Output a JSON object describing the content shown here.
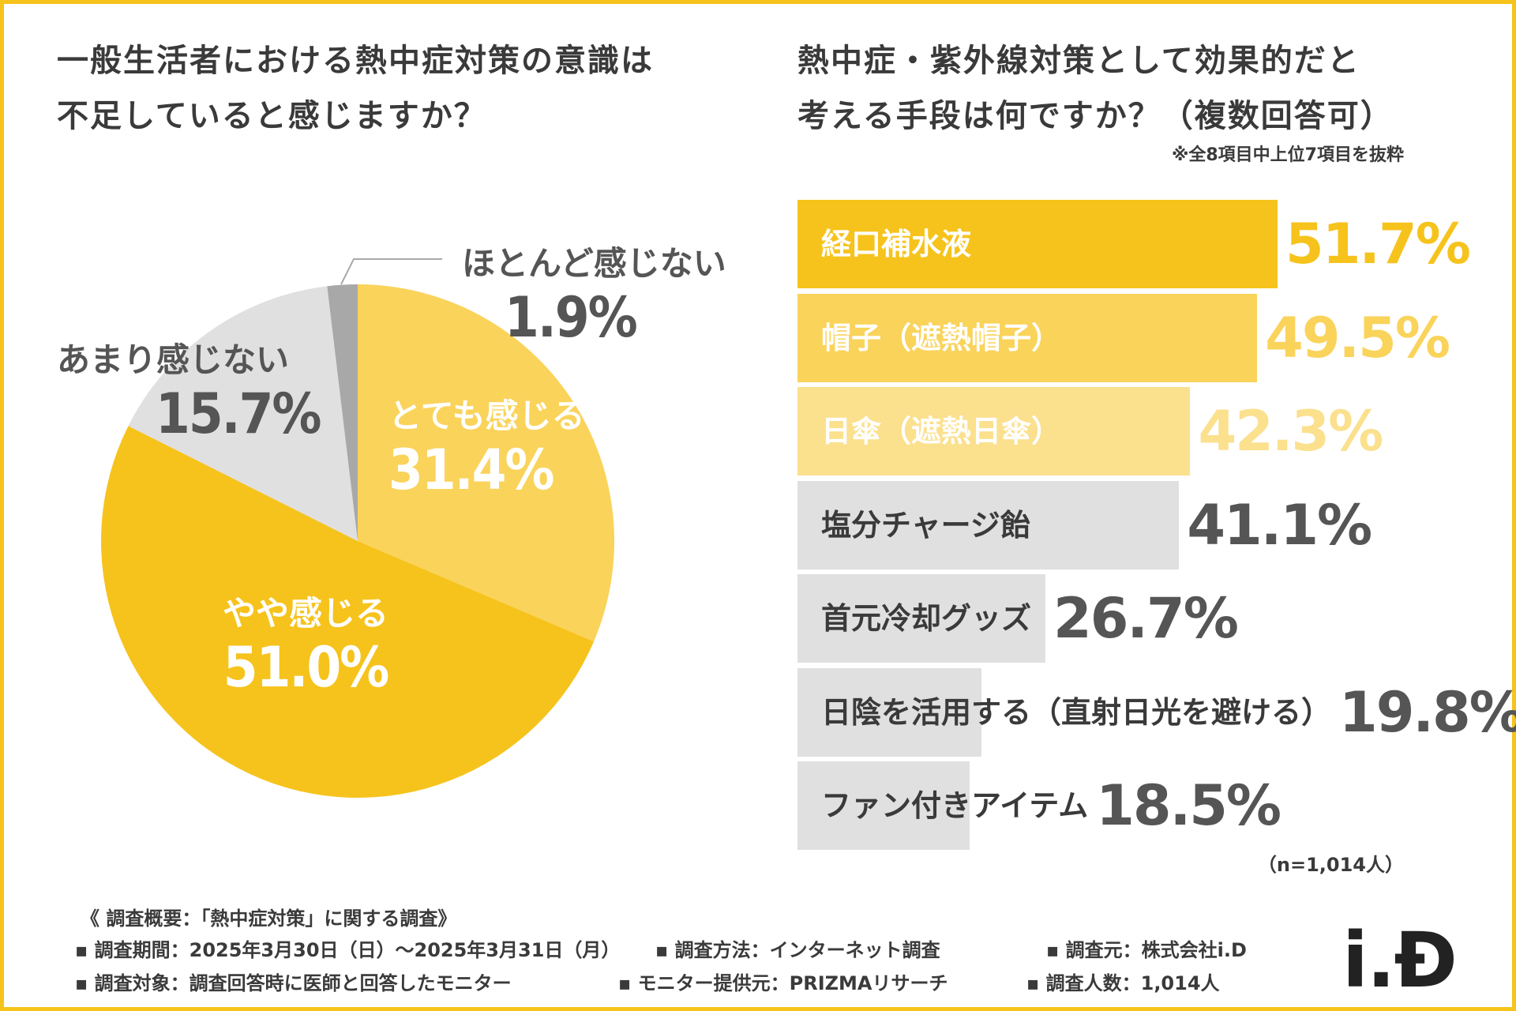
{
  "colors": {
    "border": "#f6c31c",
    "dark_yellow": "#f6c31c",
    "mid_yellow": "#fad35b",
    "light_yellow": "#fbe08e",
    "light_gray": "#e0e0e0",
    "dark_gray": "#a8a8a8",
    "text": "#3a3a3a"
  },
  "left_title": {
    "line1": "一般生活者における熱中症対策の意識は",
    "line2": "不足していると感じますか？"
  },
  "right_title": {
    "line1": "熱中症・紫外線対策として効果的だと",
    "line2": "考える手段は何ですか？（複数回答可）",
    "note": "※全8項目中上位7項目を抜粋"
  },
  "chart_data": [
    {
      "type": "pie",
      "title": "一般生活者における熱中症対策の意識は不足していると感じますか？",
      "start": "12 o'clock, clockwise",
      "slices": [
        {
          "label": "とても感じる",
          "value": 31.4,
          "display": "31.4%",
          "color": "#fad35b"
        },
        {
          "label": "やや感じる",
          "value": 51.0,
          "display": "51.0%",
          "color": "#f6c31c"
        },
        {
          "label": "あまり感じない",
          "value": 15.7,
          "display": "15.7%",
          "color": "#e0e0e0"
        },
        {
          "label": "ほとんど感じない",
          "value": 1.9,
          "display": "1.9%",
          "color": "#a8a8a8"
        }
      ]
    },
    {
      "type": "bar",
      "orientation": "horizontal",
      "title": "熱中症・紫外線対策として効果的だと考える手段は何ですか？（複数回答可）",
      "xlim": [
        0,
        100
      ],
      "sample": "（n=1,014人）",
      "categories": [
        "経口補水液",
        "帽子（遮熱帽子）",
        "日傘（遮熱日傘）",
        "塩分チャージ飴",
        "首元冷却グッズ",
        "日陰を活用する（直射日光を避ける）",
        "ファン付きアイテム"
      ],
      "values": [
        51.7,
        49.5,
        42.3,
        41.1,
        26.7,
        19.8,
        18.5
      ],
      "display": [
        "51.7%",
        "49.5%",
        "42.3%",
        "41.1%",
        "26.7%",
        "19.8%",
        "18.5%"
      ],
      "bar_colors": [
        "#f6c31c",
        "#fad35b",
        "#fbe08e",
        "#e0e0e0",
        "#e0e0e0",
        "#e0e0e0",
        "#e0e0e0"
      ],
      "label_colors": [
        "#ffffff",
        "#ffffff",
        "#ffffff",
        "#3a3a3a",
        "#3a3a3a",
        "#3a3a3a",
        "#3a3a3a"
      ],
      "value_colors": [
        "#f6c31c",
        "#fad35b",
        "#fbe08e",
        "#555555",
        "#555555",
        "#555555",
        "#555555"
      ]
    }
  ],
  "footer": {
    "summary": "《 調査概要：「熱中症対策」に関する調査》",
    "period": "▪ 調査期間：2025年3月30日（日）～2025年3月31日（月）",
    "method": "▪ 調査方法：インターネット調査",
    "source": "▪ 調査元：株式会社i.D",
    "target": "▪ 調査対象：調査回答時に医師と回答したモニター",
    "provider": "▪ モニター提供元：PRIZMAリサーチ",
    "count": "▪ 調査人数：1,014人"
  },
  "logo": "i.Đ"
}
